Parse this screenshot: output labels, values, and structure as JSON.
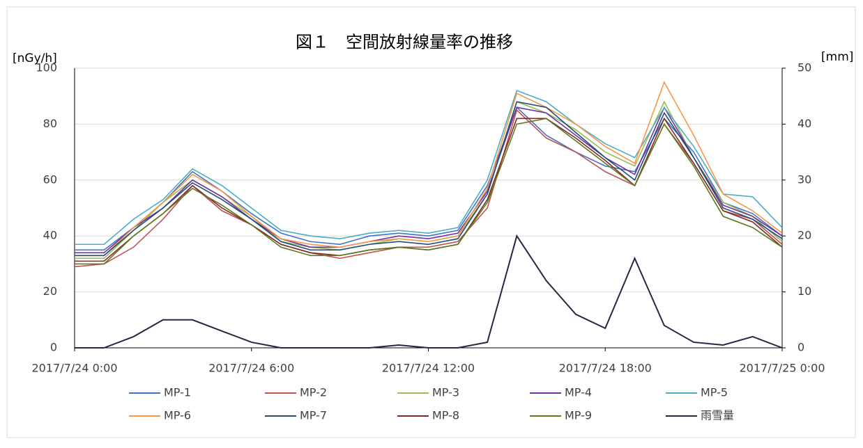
{
  "chart_data": {
    "type": "line",
    "title": "図１　空間放射線量率の推移",
    "y_label": "[nGy/h]",
    "y2_label": "[mm]",
    "x": [
      0,
      1,
      2,
      3,
      4,
      5,
      6,
      7,
      8,
      9,
      10,
      11,
      12,
      13,
      14,
      15,
      16,
      17,
      18,
      19,
      20,
      21,
      22,
      23,
      24
    ],
    "xlim": [
      0,
      24
    ],
    "xticks": [
      {
        "value": 0,
        "label": "2017/7/24 0:00"
      },
      {
        "value": 6,
        "label": "2017/7/24 6:00"
      },
      {
        "value": 12,
        "label": "2017/7/24 12:00"
      },
      {
        "value": 18,
        "label": "2017/7/24 18:00"
      },
      {
        "value": 24,
        "label": "2017/7/25 0:00"
      }
    ],
    "ylim": [
      0,
      100
    ],
    "yticks": [
      0,
      20,
      40,
      60,
      80,
      100
    ],
    "y2lim": [
      0,
      50
    ],
    "y2ticks": [
      0,
      10,
      20,
      30,
      40,
      50
    ],
    "grid": true,
    "legend": "bottom",
    "series": [
      {
        "name": "MP-1",
        "color": "#4472c4",
        "values": [
          35,
          35,
          43,
          52,
          63,
          56,
          48,
          41,
          38,
          37,
          40,
          41,
          40,
          42,
          58,
          86,
          76,
          70,
          65,
          63,
          82,
          70,
          52,
          48,
          40
        ]
      },
      {
        "name": "MP-2",
        "color": "#c0504d",
        "values": [
          29,
          30,
          36,
          46,
          58,
          49,
          44,
          37,
          34,
          32,
          34,
          36,
          36,
          38,
          50,
          85,
          75,
          70,
          63,
          58,
          80,
          66,
          49,
          46,
          37
        ]
      },
      {
        "name": "MP-3",
        "color": "#9bbb59",
        "values": [
          32,
          32,
          42,
          52,
          60,
          54,
          47,
          38,
          36,
          35,
          37,
          39,
          38,
          40,
          55,
          88,
          84,
          78,
          70,
          65,
          88,
          68,
          52,
          47,
          38
        ]
      },
      {
        "name": "MP-4",
        "color": "#7030a0",
        "values": [
          34,
          34,
          43,
          50,
          60,
          54,
          46,
          39,
          36,
          36,
          38,
          40,
          39,
          41,
          56,
          86,
          84,
          76,
          68,
          62,
          86,
          68,
          51,
          47,
          40
        ]
      },
      {
        "name": "MP-5",
        "color": "#4bacc6",
        "values": [
          37,
          37,
          46,
          53,
          64,
          58,
          50,
          42,
          40,
          39,
          41,
          42,
          41,
          43,
          60,
          92,
          88,
          80,
          73,
          68,
          86,
          72,
          55,
          54,
          43
        ]
      },
      {
        "name": "MP-6",
        "color": "#f79646",
        "values": [
          33,
          33,
          43,
          52,
          62,
          56,
          47,
          39,
          37,
          36,
          38,
          39,
          38,
          40,
          57,
          91,
          86,
          80,
          72,
          66,
          95,
          76,
          55,
          49,
          41
        ]
      },
      {
        "name": "MP-7",
        "color": "#1f4e79",
        "values": [
          33,
          33,
          42,
          50,
          59,
          53,
          46,
          38,
          35,
          35,
          37,
          38,
          37,
          39,
          55,
          88,
          86,
          77,
          68,
          60,
          84,
          68,
          50,
          46,
          39
        ]
      },
      {
        "name": "MP-8",
        "color": "#7f2a27",
        "values": [
          31,
          31,
          40,
          48,
          58,
          50,
          44,
          37,
          34,
          33,
          35,
          36,
          35,
          37,
          53,
          82,
          82,
          75,
          67,
          58,
          82,
          66,
          49,
          45,
          36
        ]
      },
      {
        "name": "MP-9",
        "color": "#5a7a1d",
        "values": [
          30,
          30,
          40,
          48,
          57,
          51,
          44,
          36,
          33,
          33,
          35,
          36,
          35,
          37,
          52,
          80,
          82,
          74,
          66,
          58,
          80,
          65,
          47,
          43,
          36
        ]
      },
      {
        "name": "雨雪量",
        "color": "#2e2244",
        "axis": "y2",
        "values": [
          0,
          0,
          2,
          5,
          5,
          3,
          1,
          0,
          0,
          0,
          0,
          0.5,
          0,
          0,
          1,
          20,
          12,
          6,
          3.5,
          16,
          4,
          1,
          0.5,
          2,
          0
        ]
      }
    ]
  }
}
